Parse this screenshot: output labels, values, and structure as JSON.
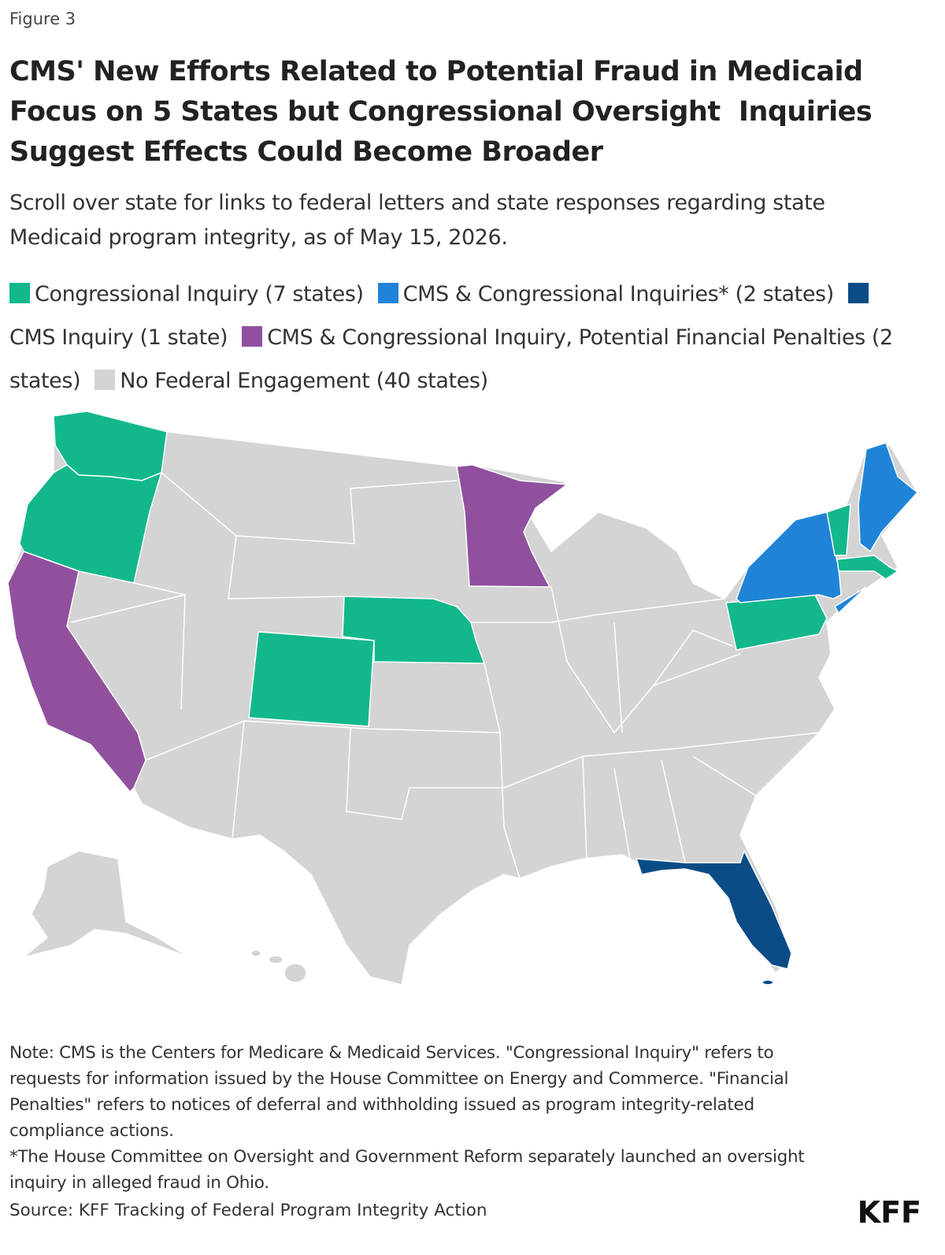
{
  "figure_label": "Figure 3",
  "title": "CMS' New Efforts Related to Potential Fraud in Medicaid Focus on 5 States but Congressional Oversight  Inquiries Suggest Effects Could Become Broader",
  "subtitle": "Scroll over state for links to federal letters and state responses regarding state Medicaid program integrity, as of May 15, 2026.",
  "legend": [
    {
      "label": "Congressional Inquiry (7 states)",
      "color": "#12b88b"
    },
    {
      "label": "CMS & Congressional Inquiries* (2 states)",
      "color": "#1f84d8"
    },
    {
      "label": "CMS Inquiry (1 state)",
      "color": "#0b4c87"
    },
    {
      "label": "CMS & Congressional Inquiry, Potential Financial Penalties (2 states)",
      "color": "#90509e"
    },
    {
      "label": "No Federal Engagement (40 states)",
      "color": "#d4d4d4"
    }
  ],
  "notes": [
    "Note: CMS is the Centers for Medicare & Medicaid Services. \"Congressional Inquiry\" refers to requests for information issued by the House Committee on Energy and Commerce. \"Financial Penalties\" refers to notices of deferral and withholding issued as program integrity-related compliance actions.",
    "*The House Committee on Oversight and Government Reform separately launched an oversight inquiry in alleged fraud in Ohio."
  ],
  "source": "Source: KFF Tracking of Federal Program Integrity Action",
  "logo": "KFF"
}
